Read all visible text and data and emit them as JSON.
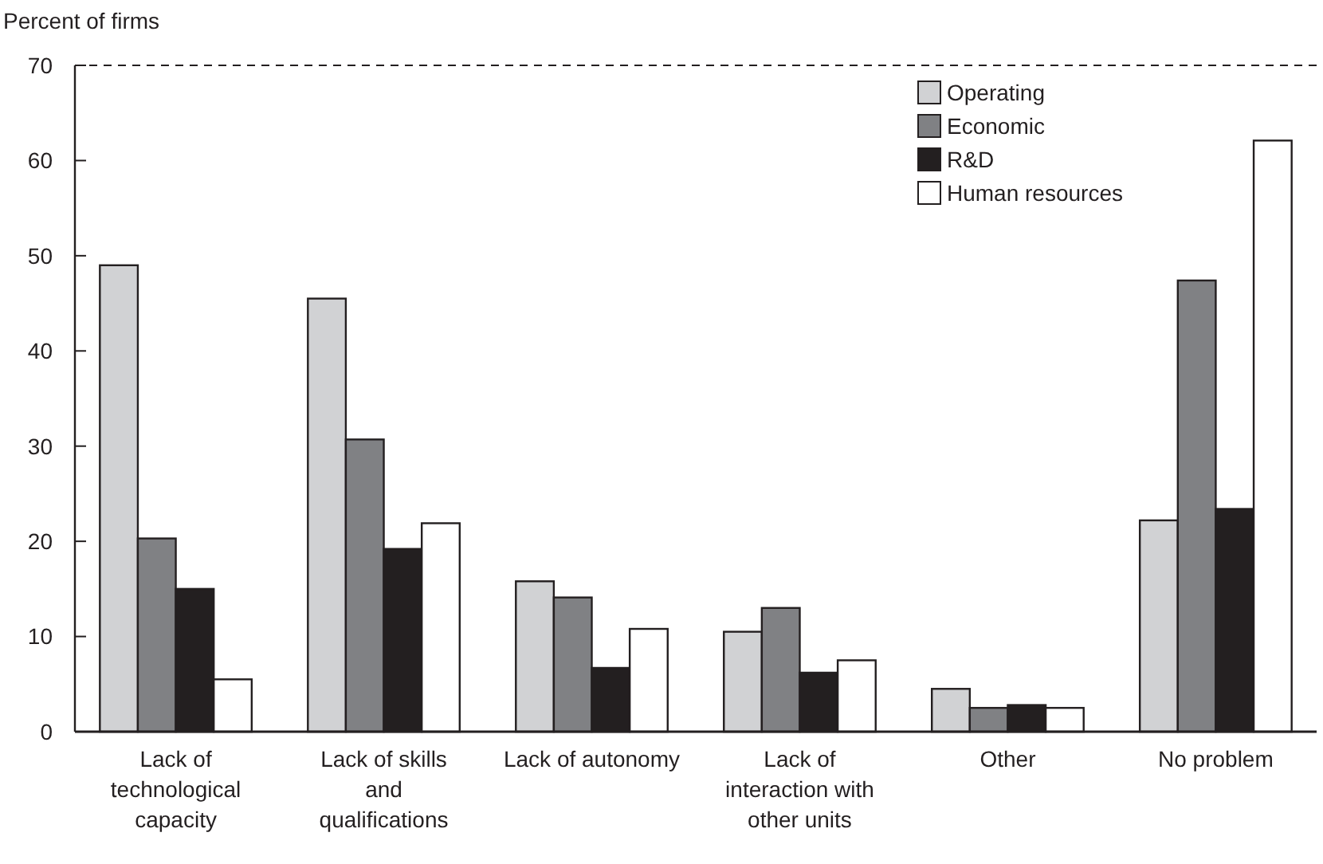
{
  "chart_data": {
    "type": "bar",
    "ylabel": "Percent of firms",
    "categories": [
      "Lack of technological capacity",
      "Lack of skills and qualifications",
      "Lack of autonomy",
      "Lack of interaction with other units",
      "Other",
      "No problem"
    ],
    "series": [
      {
        "name": "Operating",
        "color": "#d1d2d4",
        "values": [
          49.0,
          45.5,
          15.8,
          10.5,
          4.5,
          22.2
        ]
      },
      {
        "name": "Economic",
        "color": "#808184",
        "values": [
          20.3,
          30.7,
          14.1,
          13.0,
          2.5,
          47.4
        ]
      },
      {
        "name": "R&D",
        "color": "#231f20",
        "values": [
          15.0,
          19.2,
          6.7,
          6.2,
          2.8,
          23.4
        ]
      },
      {
        "name": "Human resources",
        "color": "#ffffff",
        "values": [
          5.5,
          21.9,
          10.8,
          7.5,
          2.5,
          62.1
        ]
      }
    ],
    "ylim": [
      0,
      70
    ],
    "yticks": [
      0,
      10,
      20,
      30,
      40,
      50,
      60,
      70
    ],
    "grid": false,
    "legend": "top right"
  }
}
